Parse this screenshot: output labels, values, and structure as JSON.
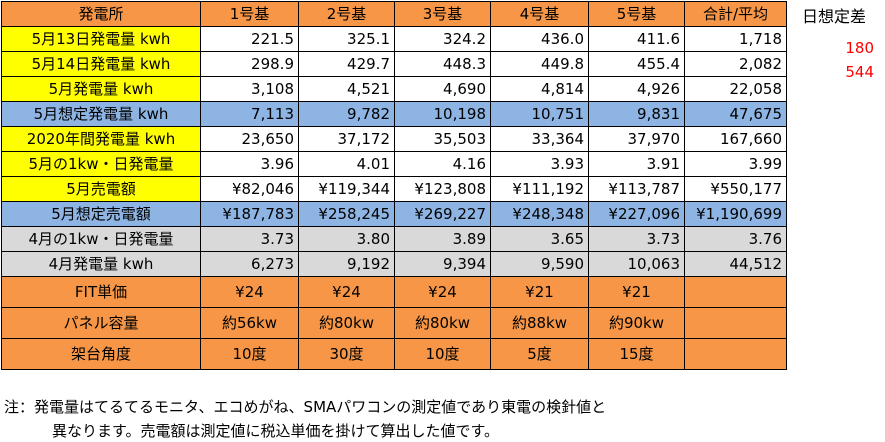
{
  "table": {
    "headers": [
      "発電所",
      "1号基",
      "2号基",
      "3号基",
      "4号基",
      "5号基",
      "合計/平均"
    ],
    "rows": [
      {
        "label": "5月13日発電量 kwh",
        "style": "bg-yellow",
        "values": [
          "221.5",
          "325.1",
          "324.2",
          "436.0",
          "411.6",
          "1,718"
        ]
      },
      {
        "label": "5月14日発電量 kwh",
        "style": "bg-yellow",
        "values": [
          "298.9",
          "429.7",
          "448.3",
          "449.8",
          "455.4",
          "2,082"
        ]
      },
      {
        "label": "5月発電量 kwh",
        "style": "bg-yellow",
        "values": [
          "3,108",
          "4,521",
          "4,690",
          "4,814",
          "4,926",
          "22,058"
        ]
      },
      {
        "label": "5月想定発電量 kwh",
        "style": "bg-blue",
        "values": [
          "7,113",
          "9,782",
          "10,198",
          "10,751",
          "9,831",
          "47,675"
        ]
      },
      {
        "label": "2020年間発電量 kwh",
        "style": "bg-yellow",
        "values": [
          "23,650",
          "37,172",
          "35,503",
          "33,364",
          "37,970",
          "167,660"
        ]
      },
      {
        "label": "5月の1kw・日発電量",
        "style": "bg-yellow",
        "values": [
          "3.96",
          "4.01",
          "4.16",
          "3.93",
          "3.91",
          "3.99"
        ]
      },
      {
        "label": "5月売電額",
        "style": "bg-yellow",
        "values": [
          "¥82,046",
          "¥119,344",
          "¥123,808",
          "¥111,192",
          "¥113,787",
          "¥550,177"
        ]
      },
      {
        "label": "5月想定売電額",
        "style": "bg-blue",
        "values": [
          "¥187,783",
          "¥258,245",
          "¥269,227",
          "¥248,348",
          "¥227,096",
          "¥1,190,699"
        ]
      },
      {
        "label": "4月の1kw・日発電量",
        "style": "bg-gray",
        "values": [
          "3.73",
          "3.80",
          "3.89",
          "3.65",
          "3.73",
          "3.76"
        ]
      },
      {
        "label": "4月発電量 kwh",
        "style": "bg-gray",
        "values": [
          "6,273",
          "9,192",
          "9,394",
          "9,590",
          "10,063",
          "44,512"
        ]
      },
      {
        "label": "FIT単価",
        "style": "bg-orange",
        "values": [
          "¥24",
          "¥24",
          "¥24",
          "¥21",
          "¥21",
          ""
        ]
      },
      {
        "label": "パネル容量",
        "style": "bg-orange",
        "values": [
          "約56kw",
          "約80kw",
          "約80kw",
          "約88kw",
          "約90kw",
          ""
        ]
      },
      {
        "label": "架台角度",
        "style": "bg-orange",
        "values": [
          "10度",
          "30度",
          "10度",
          "5度",
          "15度",
          ""
        ]
      }
    ]
  },
  "side": {
    "title": "日想定差",
    "values": [
      "180",
      "544"
    ],
    "color": "#ff0000"
  },
  "note": {
    "line1": "注：発電量はてるてるモニタ、エコめがね、SMAパワコンの測定値であり東電の検針値と",
    "line2": "異なります。売電額は測定値に税込単価を掛けて算出した値です。"
  },
  "colors": {
    "header": "#f79646",
    "yellow": "#ffff00",
    "blue": "#8db4e2",
    "gray": "#d9d9d9",
    "orange": "#f79646"
  }
}
